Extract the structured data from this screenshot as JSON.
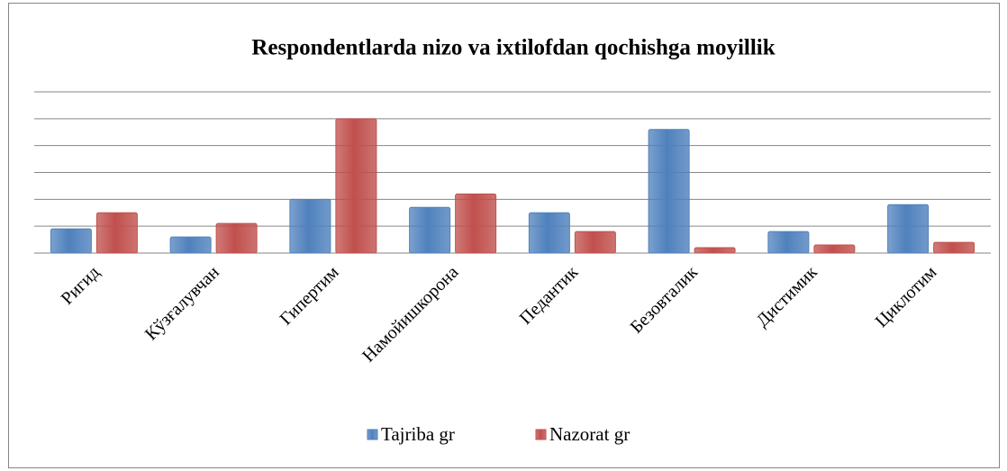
{
  "chart_data": {
    "type": "bar",
    "title": "Respondentlarda nizo va ixtilofdan qochishga moyillik",
    "categories": [
      "Ригид",
      "Кўзғалувчан",
      "Гипертим",
      "Намойишкорона",
      "Педантик",
      "Безовталик",
      "Дистимик",
      "Циклотим"
    ],
    "series": [
      {
        "name": "Tajriba gr",
        "color": "#4f81bd",
        "values": [
          0.9,
          0.6,
          2.0,
          1.7,
          1.5,
          4.6,
          0.8,
          1.8
        ]
      },
      {
        "name": "Nazorat gr",
        "color": "#c0504d",
        "values": [
          1.5,
          1.1,
          5.0,
          2.2,
          0.8,
          0.2,
          0.3,
          0.4
        ]
      }
    ],
    "ylim": [
      0,
      6
    ],
    "yticks": [
      0,
      1,
      2,
      3,
      4,
      5,
      6
    ],
    "grid": true,
    "legend": "bottom"
  }
}
